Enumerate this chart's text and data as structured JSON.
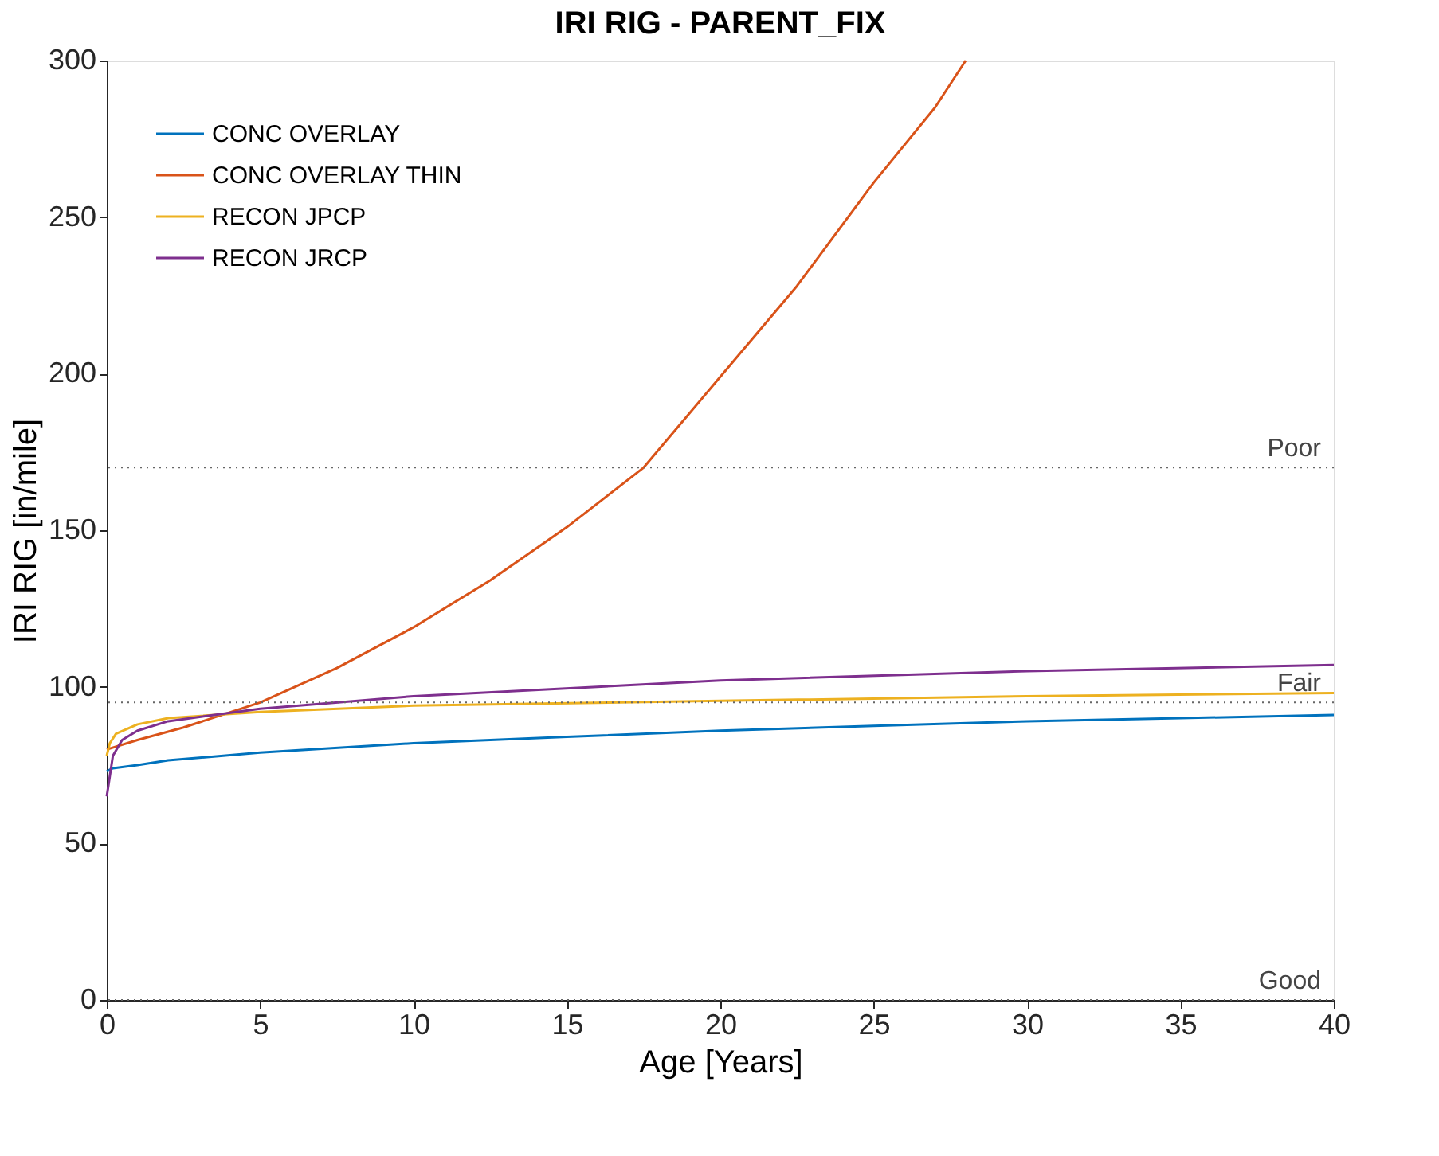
{
  "chart_data": {
    "type": "line",
    "title": "IRI RIG - PARENT_FIX",
    "xlabel": "Age [Years]",
    "ylabel": "IRI RIG [in/mile]",
    "xlim": [
      0,
      40
    ],
    "xticks": [
      0,
      5,
      10,
      15,
      20,
      25,
      30,
      35,
      40
    ],
    "ylim": [
      0,
      300
    ],
    "yticks": [
      0,
      50,
      100,
      150,
      200,
      250,
      300
    ],
    "legend": "top left",
    "grid": false,
    "line_style": "solid",
    "marker": "none",
    "series": [
      {
        "name": "CONC OVERLAY",
        "color": "#0072bd",
        "x": [
          0,
          0.2,
          1,
          2,
          5,
          10,
          15,
          20,
          25,
          30,
          35,
          40
        ],
        "values": [
          73,
          74,
          75,
          76.5,
          79,
          82,
          84,
          86,
          87.5,
          89,
          90,
          91
        ]
      },
      {
        "name": "CONC OVERLAY THIN",
        "color": "#d95319",
        "x": [
          0,
          1,
          2.5,
          5,
          7.5,
          10,
          12.5,
          15,
          17.5,
          20,
          22.5,
          25,
          27,
          28
        ],
        "values": [
          80,
          83,
          87,
          95,
          106,
          119,
          134,
          151,
          170,
          199,
          228,
          261,
          285,
          300
        ]
      },
      {
        "name": "RECON JPCP",
        "color": "#edb120",
        "x": [
          0,
          0.1,
          0.3,
          1,
          2,
          5,
          10,
          20,
          30,
          40
        ],
        "values": [
          78,
          82,
          85,
          88,
          90,
          92,
          94,
          95.5,
          97,
          98
        ]
      },
      {
        "name": "RECON JRCP",
        "color": "#7e2f8e",
        "x": [
          0,
          0.2,
          0.5,
          1,
          2,
          5,
          10,
          20,
          30,
          40
        ],
        "values": [
          65,
          78,
          83,
          86,
          89,
          93,
          97,
          102,
          105,
          107
        ]
      }
    ],
    "ref_lines": [
      {
        "axis": "y",
        "value": 170,
        "label": "Poor",
        "color": "#666666",
        "line_style": "dotted"
      },
      {
        "axis": "y",
        "value": 95,
        "label": "Fair",
        "color": "#666666",
        "line_style": "dotted"
      },
      {
        "axis": "y",
        "value": 0,
        "label": "Good",
        "color": "#666666",
        "line_style": "dotted"
      }
    ]
  }
}
